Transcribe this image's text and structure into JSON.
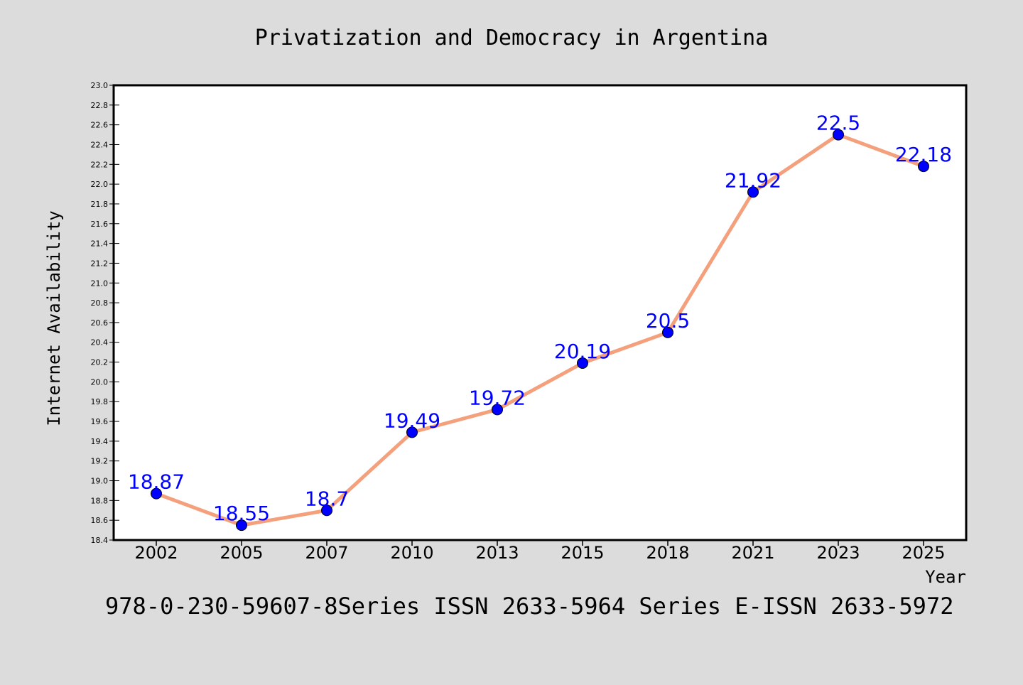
{
  "chart_data": {
    "type": "line",
    "title": "Privatization and Democracy in Argentina",
    "xlabel": "Year",
    "ylabel": "Internet Availability",
    "categories": [
      "2002",
      "2005",
      "2007",
      "2010",
      "2013",
      "2015",
      "2018",
      "2021",
      "2023",
      "2025"
    ],
    "series": [
      {
        "values": [
          18.87,
          18.55,
          18.7,
          19.49,
          19.72,
          20.19,
          20.5,
          21.92,
          22.5,
          22.18
        ],
        "labels": [
          "18.87",
          "18.55",
          "18.7",
          "19.49",
          "19.72",
          "20.19",
          "20.5",
          "21.92",
          "22.5",
          "22.18"
        ]
      }
    ],
    "ylim": [
      18.4,
      23.0
    ],
    "yticks": [
      "18.4",
      "18.6",
      "18.8",
      "19.0",
      "19.2",
      "19.4",
      "19.6",
      "19.8",
      "20.0",
      "20.2",
      "20.4",
      "20.6",
      "20.8",
      "21.0",
      "21.2",
      "21.4",
      "21.6",
      "21.8",
      "22.0",
      "22.2",
      "22.4",
      "22.6",
      "22.8",
      "23.0"
    ],
    "grid": false,
    "legend": "none",
    "colors": {
      "line": "#f4a07c",
      "marker": "#0000ff",
      "label": "#0000ff",
      "background": "#dcdcdc",
      "plot_background": "#ffffff"
    }
  },
  "footer": {
    "text": "978-0-230-59607-8Series ISSN 2633-5964 Series E-ISSN 2633-5972"
  }
}
